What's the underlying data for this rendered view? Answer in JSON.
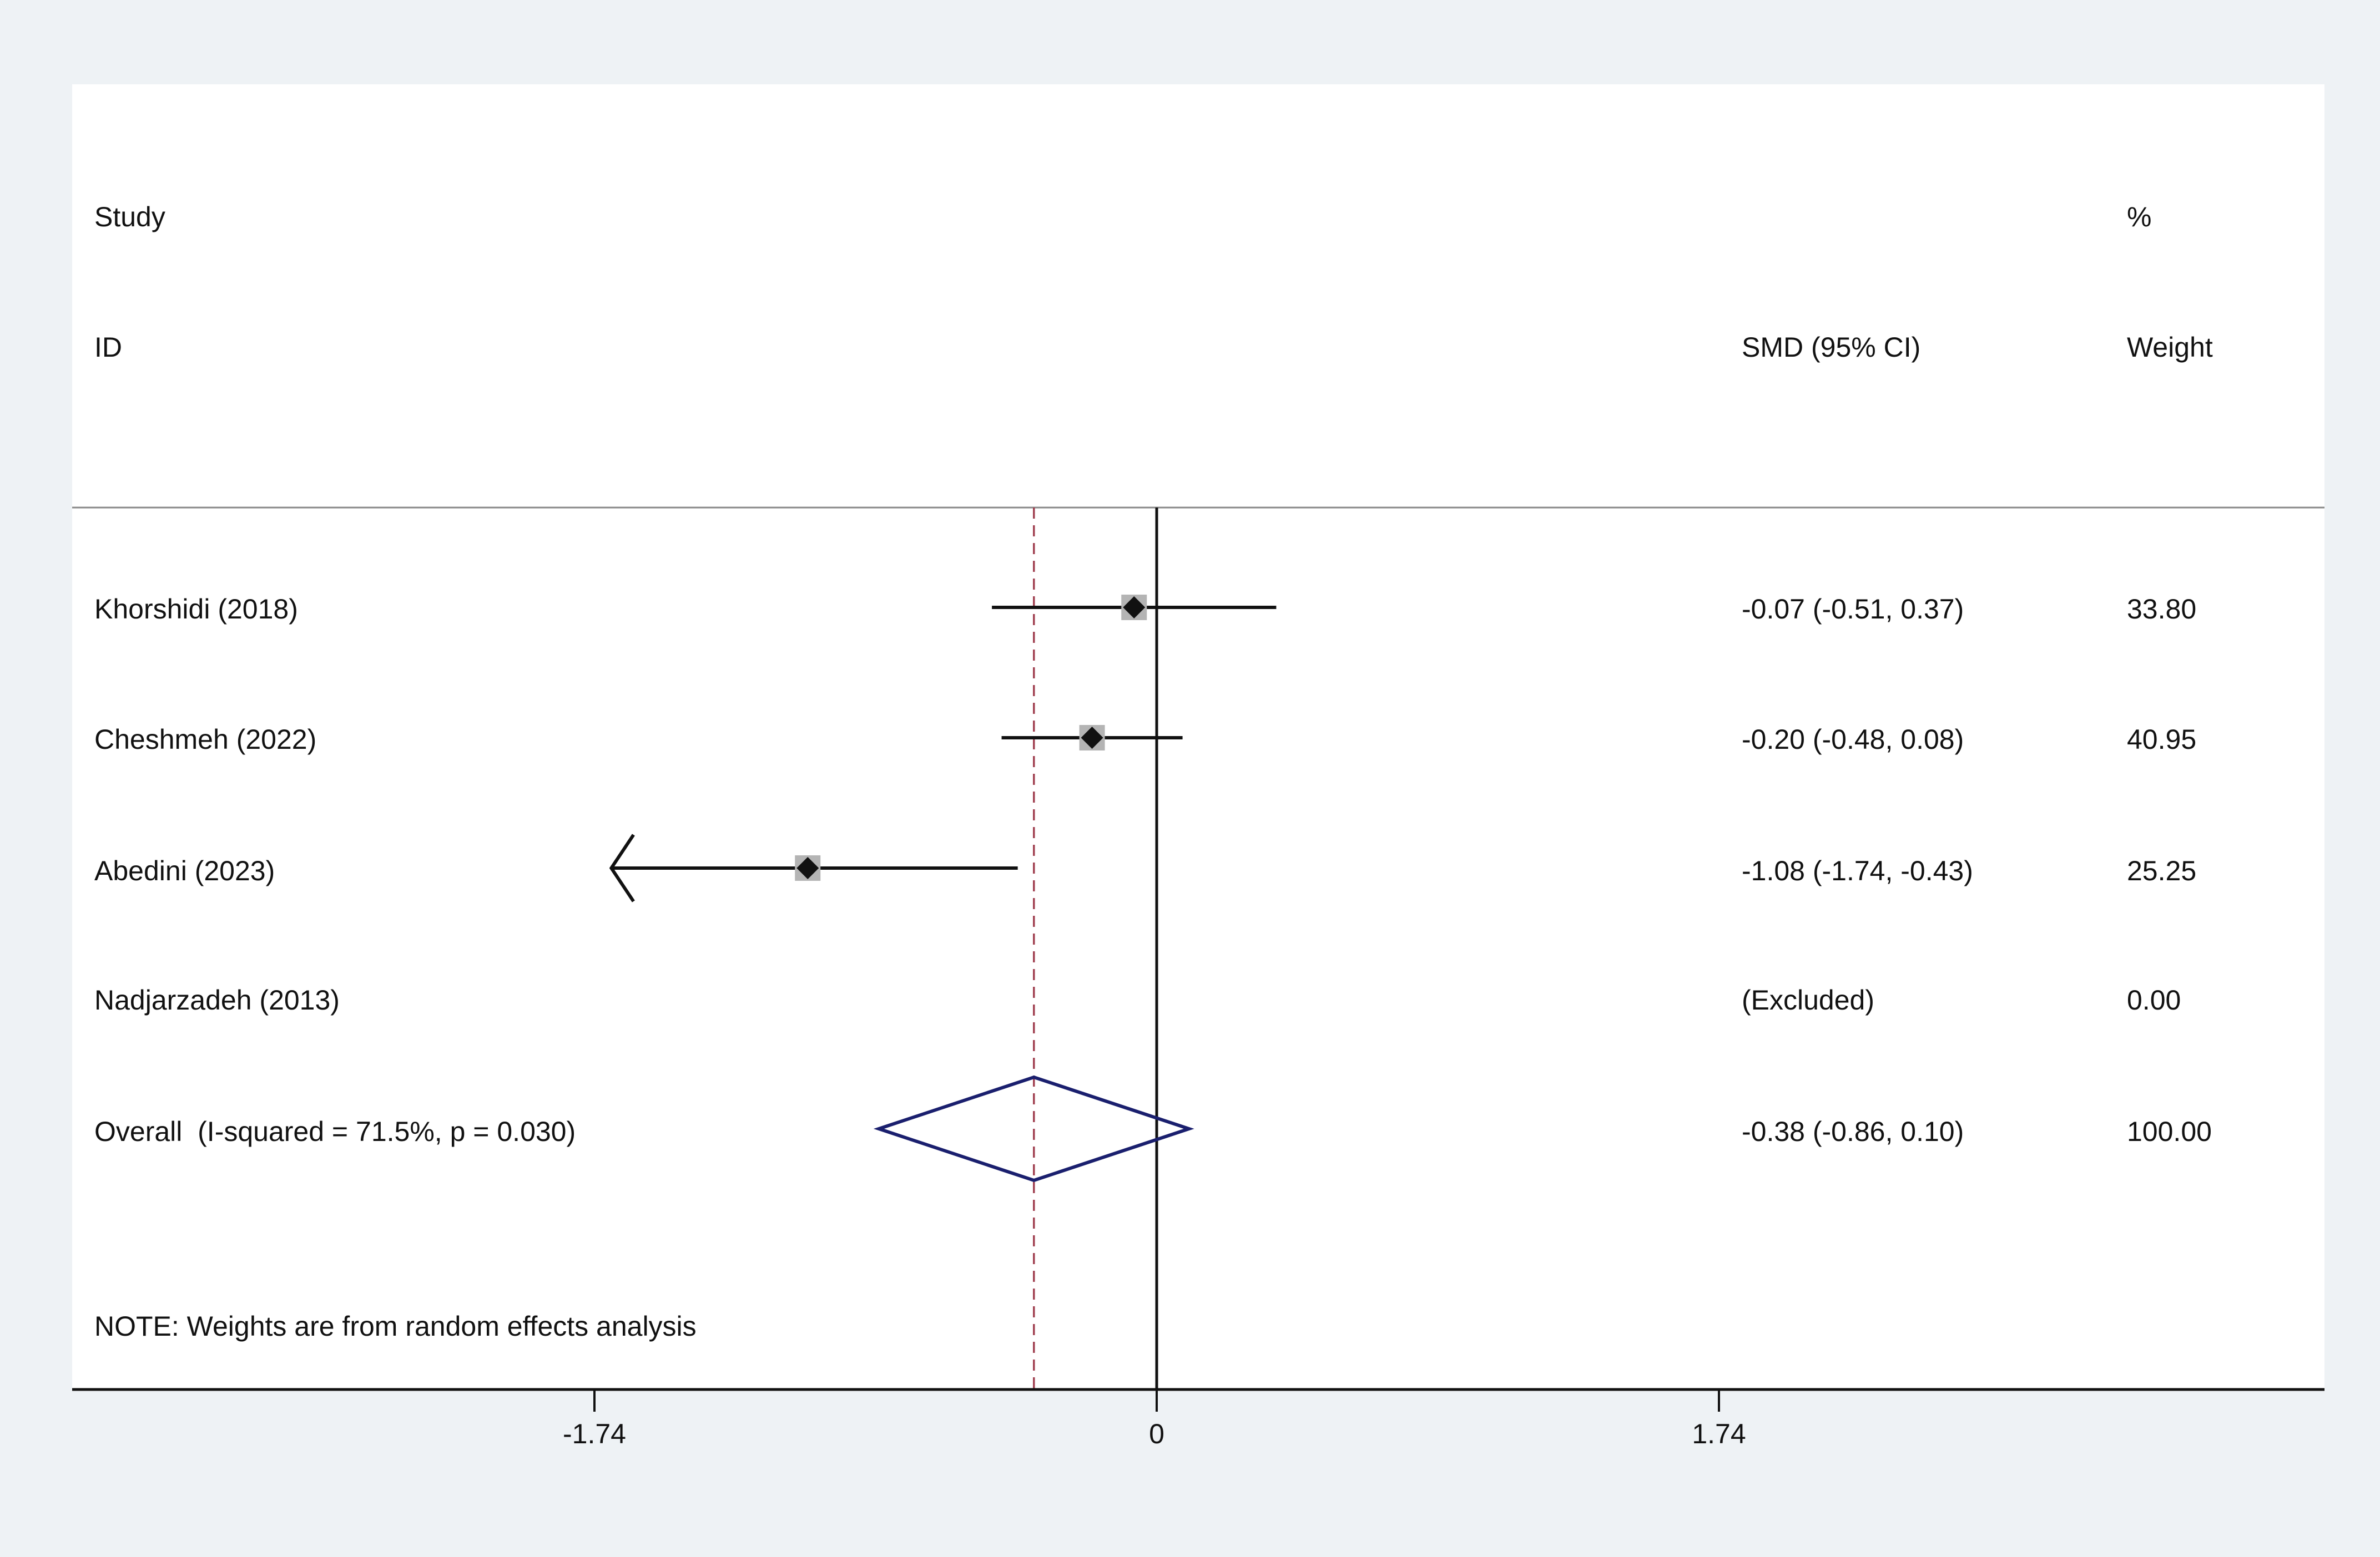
{
  "chart_data": {
    "type": "forest",
    "headers": {
      "study_top": "Study",
      "study_bottom": "ID",
      "effect": "SMD (95% CI)",
      "weight_top": "%",
      "weight_bottom": "Weight"
    },
    "studies": [
      {
        "label": "Khorshidi (2018)",
        "smd": -0.07,
        "ci": [
          -0.51,
          0.37
        ],
        "ci_text": "-0.07 (-0.51, 0.37)",
        "weight": 33.8,
        "weight_text": "33.80",
        "excluded": false
      },
      {
        "label": "Cheshmeh (2022)",
        "smd": -0.2,
        "ci": [
          -0.48,
          0.08
        ],
        "ci_text": "-0.20 (-0.48, 0.08)",
        "weight": 40.95,
        "weight_text": "40.95",
        "excluded": false
      },
      {
        "label": "Abedini (2023)",
        "smd": -1.08,
        "ci": [
          -1.74,
          -0.43
        ],
        "ci_text": "-1.08 (-1.74, -0.43)",
        "weight": 25.25,
        "weight_text": "25.25",
        "excluded": false
      },
      {
        "label": "Nadjarzadeh (2013)",
        "smd": null,
        "ci": null,
        "ci_text": "(Excluded)",
        "weight": 0.0,
        "weight_text": "0.00",
        "excluded": true
      }
    ],
    "overall": {
      "label": "Overall  (I-squared = 71.5%, p = 0.030)",
      "smd": -0.38,
      "ci": [
        -0.86,
        0.1
      ],
      "ci_text": "-0.38 (-0.86, 0.10)",
      "weight_text": "100.00"
    },
    "note": "NOTE: Weights are from random effects analysis",
    "x_ticks": [
      -1.74,
      0,
      1.74
    ],
    "x_tick_labels": [
      "-1.74",
      "0",
      "1.74"
    ],
    "xlim": [
      -1.74,
      1.74
    ],
    "null_line": 0,
    "colors": {
      "diamond": "#1a1f6e",
      "overall_line": "#a04050",
      "marker_box": "#b4b4b4",
      "ink": "#111111"
    }
  }
}
